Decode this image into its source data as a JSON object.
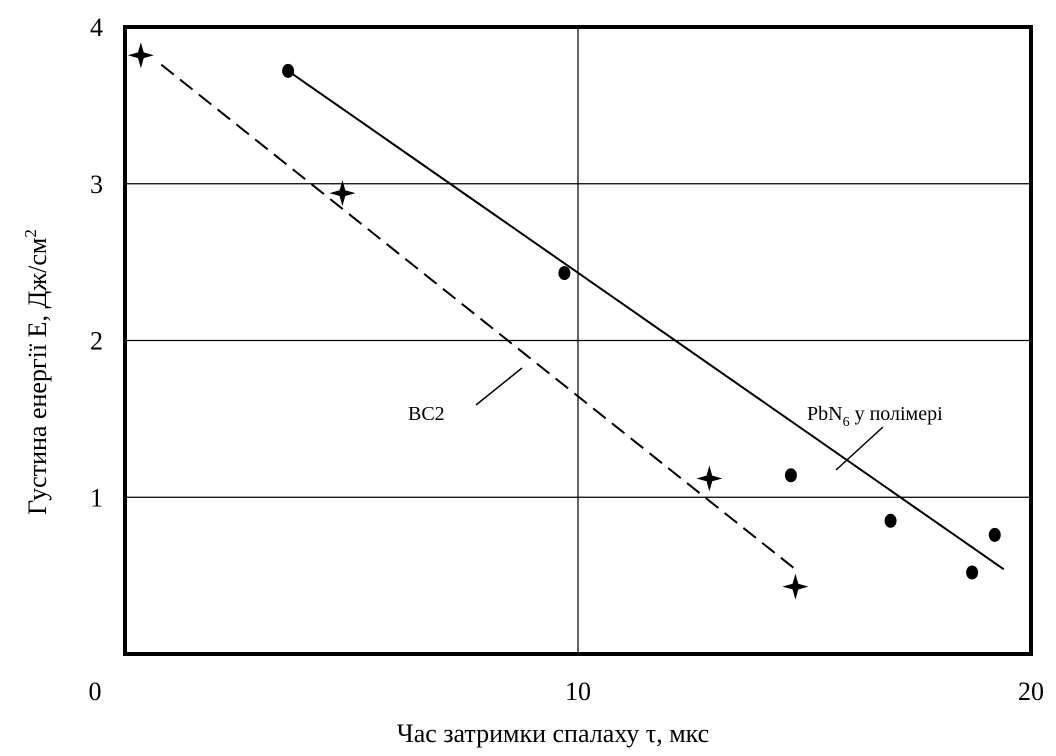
{
  "chart_data": {
    "type": "scatter",
    "xlabel": "Час затримки спалаху τ, мкс",
    "ylabel": "Густина енергії E,  Дж/см",
    "ylabel_sup": "2",
    "xlim": [
      0,
      20
    ],
    "ylim": [
      0,
      4
    ],
    "x_ticks": [
      {
        "value": 0,
        "label": "0"
      },
      {
        "value": 10,
        "label": "10"
      },
      {
        "value": 20,
        "label": "20"
      }
    ],
    "y_ticks": [
      {
        "value": 1,
        "label": "1"
      },
      {
        "value": 2,
        "label": "2"
      },
      {
        "value": 3,
        "label": "3"
      },
      {
        "value": 4,
        "label": "4"
      }
    ],
    "grid": true,
    "series": [
      {
        "name": "PbN",
        "name_sub": "6",
        "name_suffix": " у полімері",
        "marker": "circle",
        "line_style": "solid",
        "points": [
          {
            "x": 3.6,
            "y": 3.72
          },
          {
            "x": 9.7,
            "y": 2.43
          },
          {
            "x": 14.7,
            "y": 1.14
          },
          {
            "x": 16.9,
            "y": 0.85
          },
          {
            "x": 18.7,
            "y": 0.52
          },
          {
            "x": 19.2,
            "y": 0.76
          }
        ],
        "fit_line": [
          {
            "x": 3.6,
            "y": 3.72
          },
          {
            "x": 19.4,
            "y": 0.54
          }
        ]
      },
      {
        "name": "BC2",
        "marker": "star",
        "line_style": "dashed",
        "points": [
          {
            "x": 0.35,
            "y": 3.82
          },
          {
            "x": 4.8,
            "y": 2.94
          },
          {
            "x": 12.9,
            "y": 1.12
          },
          {
            "x": 14.8,
            "y": 0.43
          }
        ],
        "fit_line": [
          {
            "x": 0.8,
            "y": 3.76
          },
          {
            "x": 14.8,
            "y": 0.54
          }
        ]
      }
    ]
  }
}
